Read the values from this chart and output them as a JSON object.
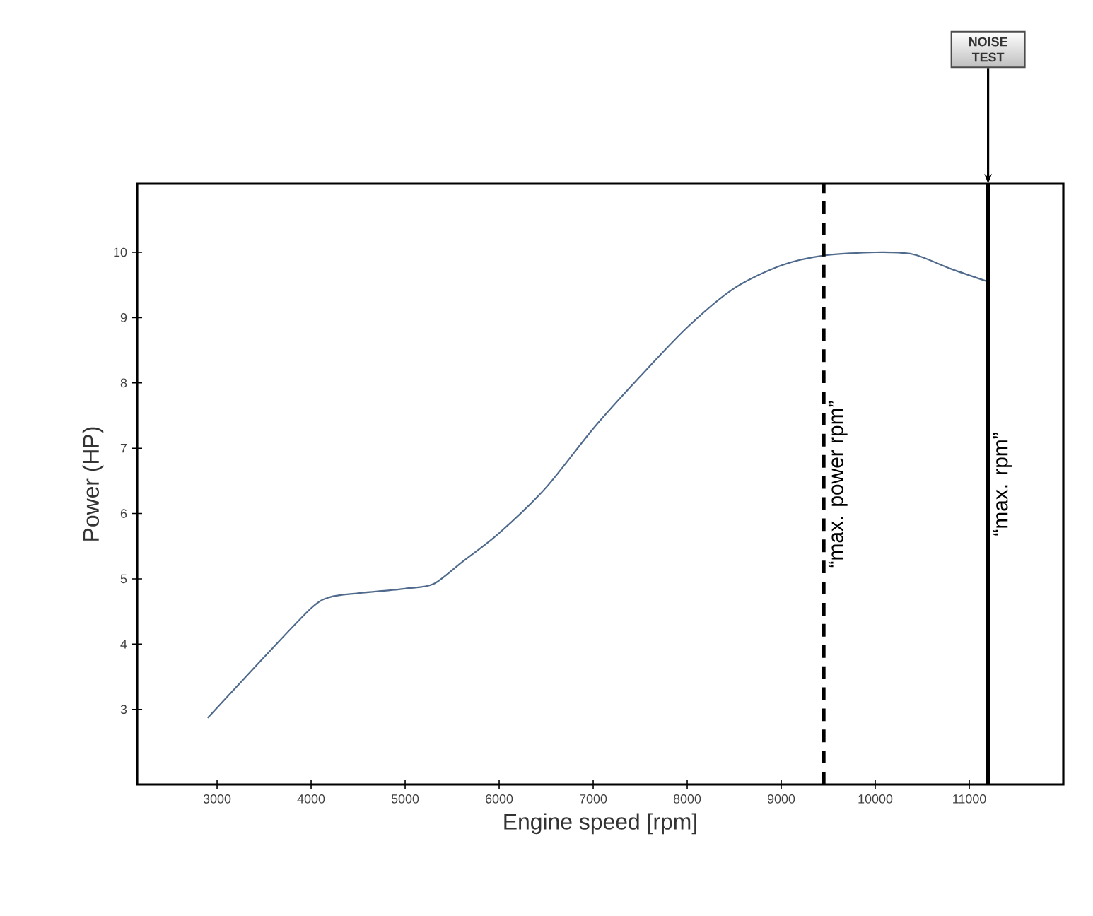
{
  "chart_data": {
    "type": "line",
    "xlabel": "Engine speed [rpm]",
    "ylabel": "Power (HP)",
    "xlim": [
      2150,
      12000
    ],
    "ylim": [
      1.85,
      11.05
    ],
    "xticks": [
      3000,
      4000,
      5000,
      6000,
      7000,
      8000,
      9000,
      10000,
      11000
    ],
    "yticks": [
      3,
      4,
      5,
      6,
      7,
      8,
      9,
      10
    ],
    "series": [
      {
        "color": "#4f6a8c",
        "x": [
          2900,
          3500,
          4000,
          4200,
          4500,
          5000,
          5300,
          5600,
          6000,
          6500,
          7000,
          7500,
          8000,
          8500,
          9000,
          9450,
          10000,
          10400,
          10800,
          11200
        ],
        "values": [
          2.87,
          3.8,
          4.55,
          4.72,
          4.78,
          4.85,
          4.92,
          5.25,
          5.7,
          6.4,
          7.3,
          8.1,
          8.85,
          9.45,
          9.8,
          9.95,
          10.0,
          9.97,
          9.75,
          9.55
        ]
      }
    ],
    "ref_lines": [
      {
        "axis": "x",
        "value": 9450,
        "label": "“max. power rpm”",
        "line_style": "dashed",
        "color": "#000000"
      },
      {
        "axis": "x",
        "value": 11200,
        "label": "“max. rpm”",
        "line_style": "solid",
        "color": "#000000"
      }
    ],
    "annotations": [
      {
        "text": "NOISE TEST",
        "x": 11200
      }
    ],
    "marker": "none",
    "line_style": "solid"
  }
}
